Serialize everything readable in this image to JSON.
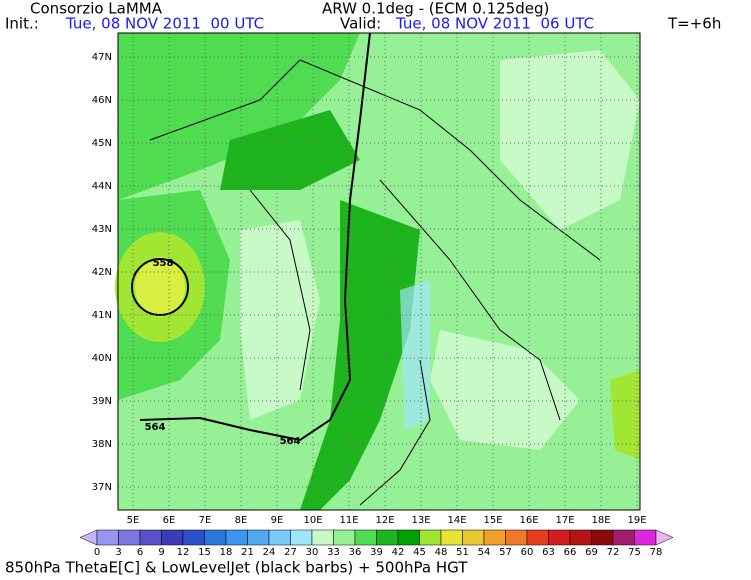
{
  "header": {
    "org": "Consorzio LaMMA",
    "init_label": "Init.:",
    "init_time": "Tue, 08 NOV 2011  00 UTC",
    "model": "ARW 0.1deg - (ECM 0.125deg)",
    "valid_label": "Valid:",
    "valid_time": "Tue, 08 NOV 2011  06 UTC",
    "lead": "T=+6h"
  },
  "map": {
    "lat_labels": [
      "47N",
      "46N",
      "45N",
      "44N",
      "43N",
      "42N",
      "41N",
      "40N",
      "39N",
      "38N",
      "37N"
    ],
    "lon_labels": [
      "5E",
      "6E",
      "7E",
      "8E",
      "9E",
      "10E",
      "11E",
      "12E",
      "13E",
      "14E",
      "15E",
      "16E",
      "17E",
      "18E",
      "19E"
    ],
    "contour_labels": [
      "558",
      "564",
      "564"
    ]
  },
  "colorbar": {
    "labels": [
      0,
      3,
      6,
      9,
      12,
      15,
      18,
      21,
      24,
      27,
      30,
      33,
      36,
      39,
      42,
      45,
      48,
      51,
      54,
      57,
      60,
      63,
      66,
      69,
      72,
      75,
      78
    ],
    "under_color": "#c8b4fa",
    "over_color": "#f0b4f0",
    "box_colors": [
      "#9696f0",
      "#7878e0",
      "#5a50c8",
      "#3c3cb4",
      "#2850c8",
      "#2878dc",
      "#3c96f0",
      "#50aaf0",
      "#78c8f8",
      "#a0e6fa",
      "#c8fac8",
      "#96f096",
      "#50dc50",
      "#1eb41e",
      "#00a000",
      "#a0e632",
      "#e6e632",
      "#e6c832",
      "#f0a028",
      "#f07828",
      "#e63c1e",
      "#d21e1e",
      "#b41414",
      "#8c0a0a",
      "#a01e6e",
      "#dc28dc"
    ]
  },
  "footer": "850hPa ThetaE[C] & LowLevelJet (black barbs) + 500hPa HGT"
}
